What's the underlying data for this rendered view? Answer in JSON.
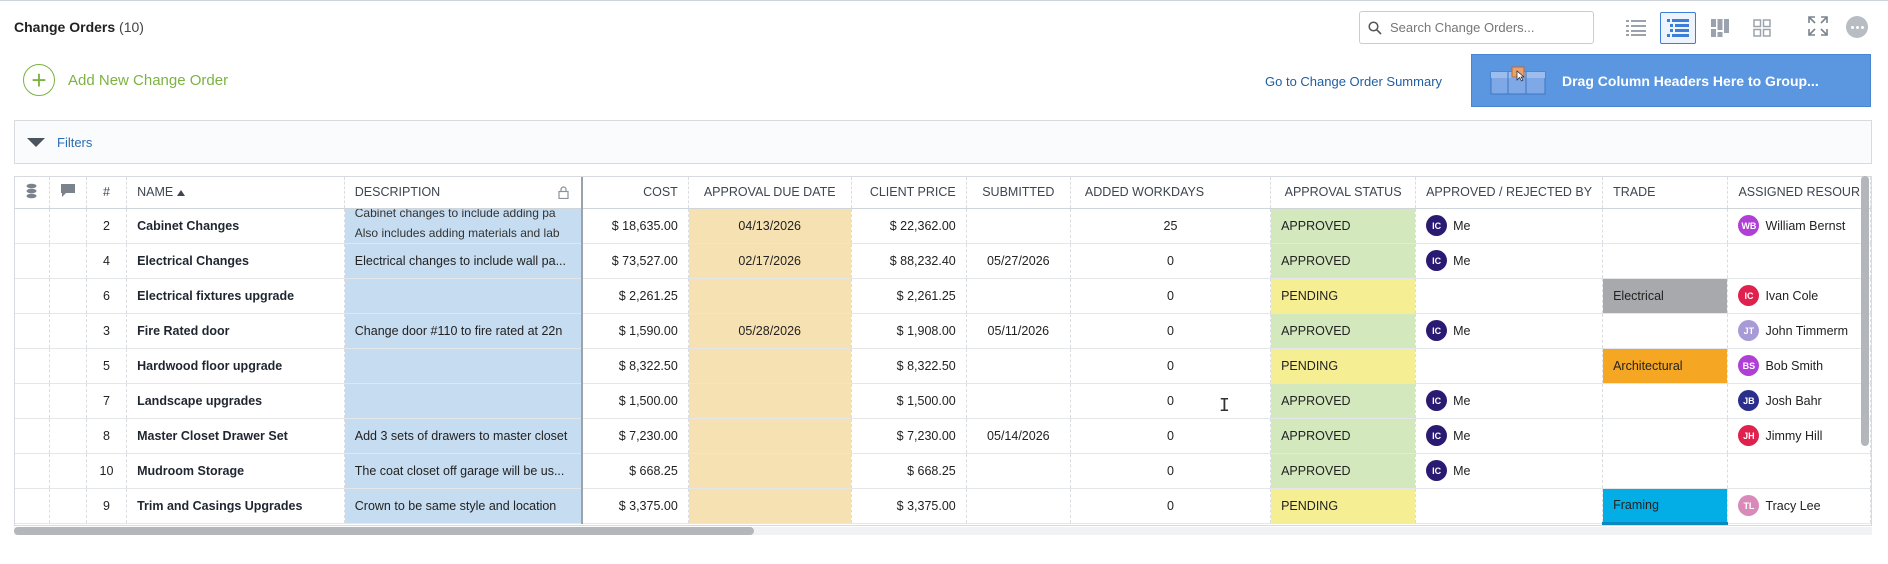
{
  "header": {
    "title": "Change Orders",
    "count": "(10)"
  },
  "search": {
    "placeholder": "Search Change Orders..."
  },
  "toolbar": {
    "add_label": "Add New Change Order",
    "summary_link": "Go to Change Order Summary",
    "group_drop_label": "Drag Column Headers Here to Group..."
  },
  "filters": {
    "label": "Filters"
  },
  "columns": {
    "num": "#",
    "name": "NAME",
    "description": "DESCRIPTION",
    "cost": "COST",
    "approval_due_date": "APPROVAL DUE DATE",
    "client_price": "CLIENT PRICE",
    "submitted": "SUBMITTED",
    "added_workdays": "ADDED WORKDAYS",
    "approval_status": "APPROVAL STATUS",
    "approved_rejected_by": "APPROVED / REJECTED BY",
    "trade": "TRADE",
    "assigned_resource": "ASSIGNED RESOUR"
  },
  "rows": [
    {
      "num": "2",
      "name": "Cabinet Changes",
      "desc1": "Cabinet changes to include adding pa",
      "desc2": "Also includes adding materials and lab",
      "cost": "$ 18,635.00",
      "due": "04/13/2026",
      "client_price": "$ 22,362.00",
      "submitted": "",
      "workdays": "25",
      "status": "APPROVED",
      "by_initials": "IC",
      "by_name": "Me",
      "trade": "",
      "res_initials": "WB",
      "res_name": "William Bernst",
      "res_color": "#b03fd6"
    },
    {
      "num": "4",
      "name": "Electrical Changes",
      "desc": "Electrical changes to include wall pa...",
      "cost": "$ 73,527.00",
      "due": "02/17/2026",
      "client_price": "$ 88,232.40",
      "submitted": "05/27/2026",
      "workdays": "0",
      "status": "APPROVED",
      "by_initials": "IC",
      "by_name": "Me",
      "trade": "",
      "res_initials": "",
      "res_name": "",
      "res_color": ""
    },
    {
      "num": "6",
      "name": "Electrical fixtures upgrade",
      "desc": "",
      "cost": "$ 2,261.25",
      "due": "",
      "client_price": "$ 2,261.25",
      "submitted": "",
      "workdays": "0",
      "status": "PENDING",
      "by_initials": "",
      "by_name": "",
      "trade": "Electrical",
      "res_initials": "IC",
      "res_name": "Ivan Cole",
      "res_color": "#e0204d"
    },
    {
      "num": "3",
      "name": "Fire Rated door",
      "desc": "Change door #110 to fire rated at 22n",
      "cost": "$ 1,590.00",
      "due": "05/28/2026",
      "client_price": "$ 1,908.00",
      "submitted": "05/11/2026",
      "workdays": "0",
      "status": "APPROVED",
      "by_initials": "IC",
      "by_name": "Me",
      "trade": "",
      "res_initials": "JT",
      "res_name": "John Timmerm",
      "res_color": "#a89ad6"
    },
    {
      "num": "5",
      "name": "Hardwood floor upgrade",
      "desc": "",
      "cost": "$ 8,322.50",
      "due": "",
      "client_price": "$ 8,322.50",
      "submitted": "",
      "workdays": "0",
      "status": "PENDING",
      "by_initials": "",
      "by_name": "",
      "trade": "Architectural",
      "res_initials": "BS",
      "res_name": "Bob Smith",
      "res_color": "#b03fd6"
    },
    {
      "num": "7",
      "name": "Landscape upgrades",
      "desc": "",
      "cost": "$ 1,500.00",
      "due": "",
      "client_price": "$ 1,500.00",
      "submitted": "",
      "workdays": "0",
      "status": "APPROVED",
      "by_initials": "IC",
      "by_name": "Me",
      "trade": "",
      "res_initials": "JB",
      "res_name": "Josh Bahr",
      "res_color": "#2b2f8c"
    },
    {
      "num": "8",
      "name": "Master Closet Drawer Set",
      "desc": "Add 3 sets of drawers to master closet",
      "cost": "$ 7,230.00",
      "due": "",
      "client_price": "$ 7,230.00",
      "submitted": "05/14/2026",
      "workdays": "0",
      "status": "APPROVED",
      "by_initials": "IC",
      "by_name": "Me",
      "trade": "",
      "res_initials": "JH",
      "res_name": "Jimmy Hill",
      "res_color": "#e0204d"
    },
    {
      "num": "10",
      "name": "Mudroom Storage",
      "desc": "The coat closet off garage will be us...",
      "cost": "$ 668.25",
      "due": "",
      "client_price": "$ 668.25",
      "submitted": "",
      "workdays": "0",
      "status": "APPROVED",
      "by_initials": "IC",
      "by_name": "Me",
      "trade": "",
      "res_initials": "",
      "res_name": "",
      "res_color": ""
    },
    {
      "num": "9",
      "name": "Trim and Casings Upgrades",
      "desc": "Crown to be same style and location",
      "cost": "$ 3,375.00",
      "due": "",
      "client_price": "$ 3,375.00",
      "submitted": "",
      "workdays": "0",
      "status": "PENDING",
      "by_initials": "",
      "by_name": "",
      "trade": "Framing",
      "res_initials": "TL",
      "res_name": "Tracy Lee",
      "res_color": "#d98ab8"
    }
  ],
  "colors": {
    "accent_green": "#7cb342",
    "group_drop_blue": "#5b96e0",
    "approved": "#d3e8bd",
    "pending": "#f6ee93",
    "due_date_bg": "#f6e1b2",
    "description_bg": "#c6dcf0",
    "approver_avatar": "#2b1a72"
  }
}
